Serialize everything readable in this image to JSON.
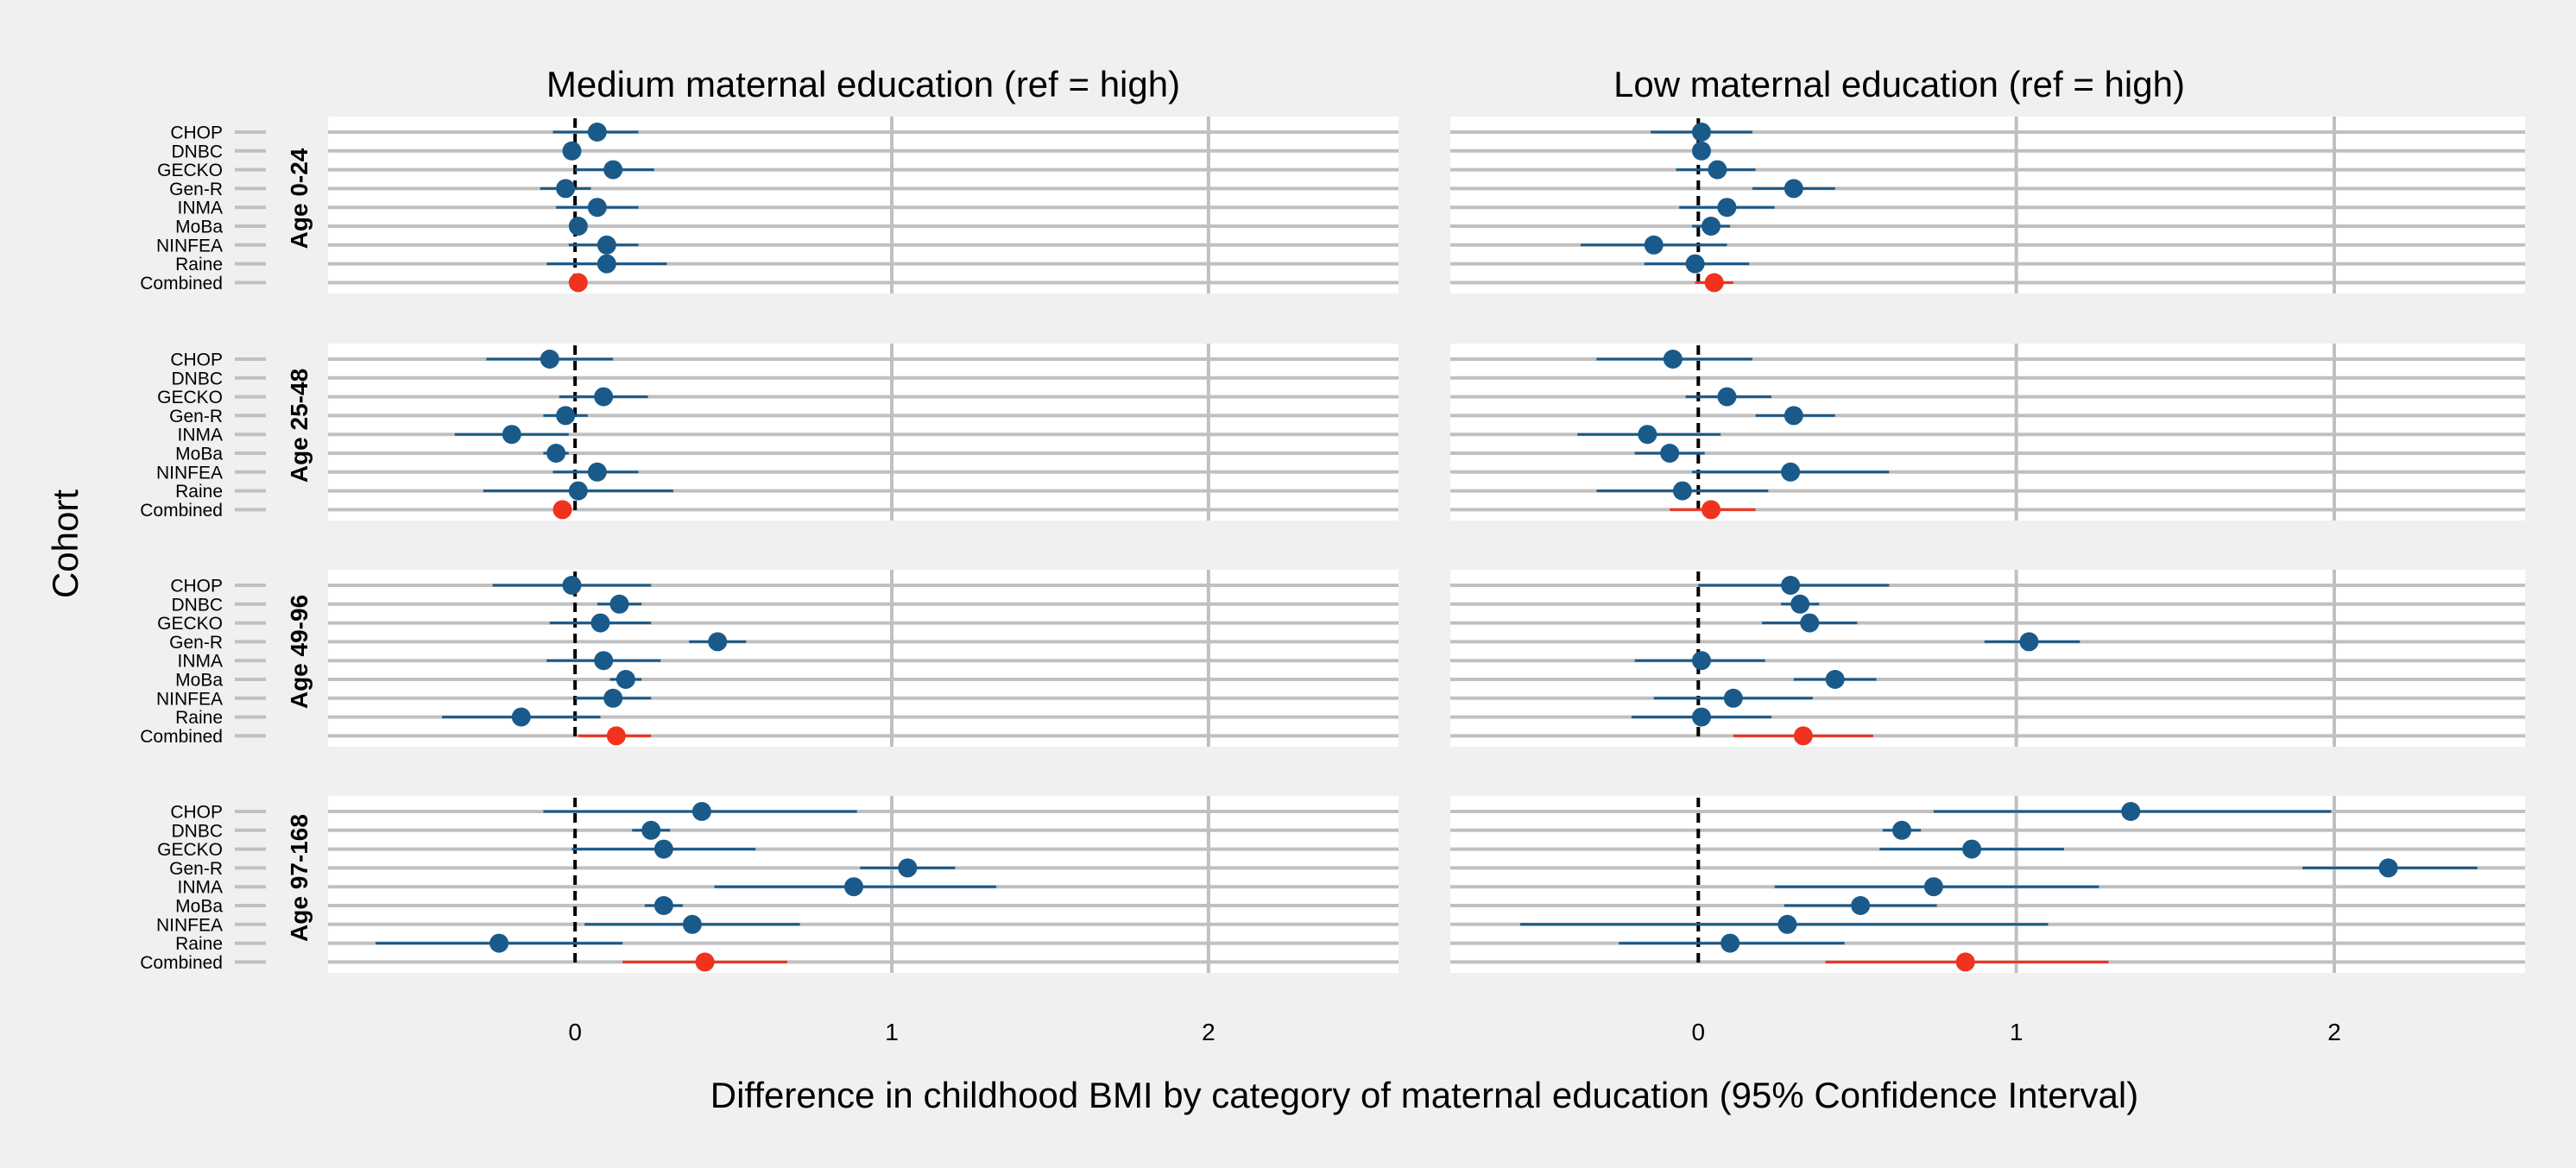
{
  "chart_data": {
    "type": "forest",
    "ylabel": "Cohort",
    "xlabel": "Difference in childhood BMI by category of maternal education (95% Confidence Interval)",
    "x_ticks": [
      0,
      1,
      2
    ],
    "row_labels": [
      "CHOP",
      "DNBC",
      "GECKO",
      "Gen-R",
      "INMA",
      "MoBa",
      "NINFEA",
      "Raine",
      "Combined"
    ],
    "colors": {
      "cohort": "#1a5a8a",
      "combined": "#f0321e",
      "grid": "#c0c0c0",
      "panel_bg": "#ffffff",
      "page_bg": "#f0f0f0",
      "reference_line": "#000000"
    },
    "columns": [
      {
        "title": "Medium maternal education (ref = high)",
        "xlim": [
          -0.78,
          2.6
        ],
        "strata": [
          {
            "label": "Age 0-24",
            "rows": [
              {
                "est": 0.07,
                "lo": -0.07,
                "hi": 0.2
              },
              {
                "est": -0.01,
                "lo": -0.02,
                "hi": 0.01
              },
              {
                "est": 0.12,
                "lo": 0.0,
                "hi": 0.25
              },
              {
                "est": -0.03,
                "lo": -0.11,
                "hi": 0.05
              },
              {
                "est": 0.07,
                "lo": -0.06,
                "hi": 0.2
              },
              {
                "est": 0.01,
                "lo": -0.01,
                "hi": 0.03
              },
              {
                "est": 0.1,
                "lo": -0.02,
                "hi": 0.2
              },
              {
                "est": 0.1,
                "lo": -0.09,
                "hi": 0.29
              },
              {
                "est": 0.01,
                "lo": -0.01,
                "hi": 0.03
              }
            ]
          },
          {
            "label": "Age 25-48",
            "rows": [
              {
                "est": -0.08,
                "lo": -0.28,
                "hi": 0.12
              },
              {
                "est": null,
                "lo": null,
                "hi": null
              },
              {
                "est": 0.09,
                "lo": -0.05,
                "hi": 0.23
              },
              {
                "est": -0.03,
                "lo": -0.1,
                "hi": 0.04
              },
              {
                "est": -0.2,
                "lo": -0.38,
                "hi": -0.02
              },
              {
                "est": -0.06,
                "lo": -0.1,
                "hi": -0.02
              },
              {
                "est": 0.07,
                "lo": -0.07,
                "hi": 0.2
              },
              {
                "est": 0.01,
                "lo": -0.29,
                "hi": 0.31
              },
              {
                "est": -0.04,
                "lo": -0.06,
                "hi": -0.02
              }
            ]
          },
          {
            "label": "Age 49-96",
            "rows": [
              {
                "est": -0.01,
                "lo": -0.26,
                "hi": 0.24
              },
              {
                "est": 0.14,
                "lo": 0.07,
                "hi": 0.21
              },
              {
                "est": 0.08,
                "lo": -0.08,
                "hi": 0.24
              },
              {
                "est": 0.45,
                "lo": 0.36,
                "hi": 0.54
              },
              {
                "est": 0.09,
                "lo": -0.09,
                "hi": 0.27
              },
              {
                "est": 0.16,
                "lo": 0.11,
                "hi": 0.21
              },
              {
                "est": 0.12,
                "lo": 0.0,
                "hi": 0.24
              },
              {
                "est": -0.17,
                "lo": -0.42,
                "hi": 0.08
              },
              {
                "est": 0.13,
                "lo": 0.01,
                "hi": 0.24
              }
            ]
          },
          {
            "label": "Age 97-168",
            "rows": [
              {
                "est": 0.4,
                "lo": -0.1,
                "hi": 0.89
              },
              {
                "est": 0.24,
                "lo": 0.18,
                "hi": 0.3
              },
              {
                "est": 0.28,
                "lo": -0.01,
                "hi": 0.57
              },
              {
                "est": 1.05,
                "lo": 0.9,
                "hi": 1.2
              },
              {
                "est": 0.88,
                "lo": 0.44,
                "hi": 1.33
              },
              {
                "est": 0.28,
                "lo": 0.22,
                "hi": 0.34
              },
              {
                "est": 0.37,
                "lo": 0.03,
                "hi": 0.71
              },
              {
                "est": -0.24,
                "lo": -0.63,
                "hi": 0.15
              },
              {
                "est": 0.41,
                "lo": 0.15,
                "hi": 0.67
              }
            ]
          }
        ]
      },
      {
        "title": "Low maternal education (ref = high)",
        "xlim": [
          -0.78,
          2.6
        ],
        "strata": [
          {
            "label": "Age 0-24",
            "rows": [
              {
                "est": 0.01,
                "lo": -0.15,
                "hi": 0.17
              },
              {
                "est": 0.01,
                "lo": 0.0,
                "hi": 0.02
              },
              {
                "est": 0.06,
                "lo": -0.07,
                "hi": 0.18
              },
              {
                "est": 0.3,
                "lo": 0.17,
                "hi": 0.43
              },
              {
                "est": 0.09,
                "lo": -0.06,
                "hi": 0.24
              },
              {
                "est": 0.04,
                "lo": -0.02,
                "hi": 0.1
              },
              {
                "est": -0.14,
                "lo": -0.37,
                "hi": 0.09
              },
              {
                "est": -0.01,
                "lo": -0.17,
                "hi": 0.16
              },
              {
                "est": 0.05,
                "lo": -0.01,
                "hi": 0.11
              }
            ]
          },
          {
            "label": "Age 25-48",
            "rows": [
              {
                "est": -0.08,
                "lo": -0.32,
                "hi": 0.17
              },
              {
                "est": null,
                "lo": null,
                "hi": null
              },
              {
                "est": 0.09,
                "lo": -0.04,
                "hi": 0.23
              },
              {
                "est": 0.3,
                "lo": 0.18,
                "hi": 0.43
              },
              {
                "est": -0.16,
                "lo": -0.38,
                "hi": 0.07
              },
              {
                "est": -0.09,
                "lo": -0.2,
                "hi": 0.02
              },
              {
                "est": 0.29,
                "lo": -0.02,
                "hi": 0.6
              },
              {
                "est": -0.05,
                "lo": -0.32,
                "hi": 0.22
              },
              {
                "est": 0.04,
                "lo": -0.09,
                "hi": 0.18
              }
            ]
          },
          {
            "label": "Age 49-96",
            "rows": [
              {
                "est": 0.29,
                "lo": 0.0,
                "hi": 0.6
              },
              {
                "est": 0.32,
                "lo": 0.26,
                "hi": 0.38
              },
              {
                "est": 0.35,
                "lo": 0.2,
                "hi": 0.5
              },
              {
                "est": 1.04,
                "lo": 0.9,
                "hi": 1.2
              },
              {
                "est": 0.01,
                "lo": -0.2,
                "hi": 0.21
              },
              {
                "est": 0.43,
                "lo": 0.3,
                "hi": 0.56
              },
              {
                "est": 0.11,
                "lo": -0.14,
                "hi": 0.36
              },
              {
                "est": 0.01,
                "lo": -0.21,
                "hi": 0.23
              },
              {
                "est": 0.33,
                "lo": 0.11,
                "hi": 0.55
              }
            ]
          },
          {
            "label": "Age 97-168",
            "rows": [
              {
                "est": 1.36,
                "lo": 0.74,
                "hi": 1.99
              },
              {
                "est": 0.64,
                "lo": 0.58,
                "hi": 0.7
              },
              {
                "est": 0.86,
                "lo": 0.57,
                "hi": 1.15
              },
              {
                "est": 2.17,
                "lo": 1.9,
                "hi": 2.45
              },
              {
                "est": 0.74,
                "lo": 0.24,
                "hi": 1.26
              },
              {
                "est": 0.51,
                "lo": 0.27,
                "hi": 0.75
              },
              {
                "est": 0.28,
                "lo": -0.56,
                "hi": 1.1
              },
              {
                "est": 0.1,
                "lo": -0.25,
                "hi": 0.46
              },
              {
                "est": 0.84,
                "lo": 0.4,
                "hi": 1.29
              }
            ]
          }
        ]
      }
    ]
  }
}
